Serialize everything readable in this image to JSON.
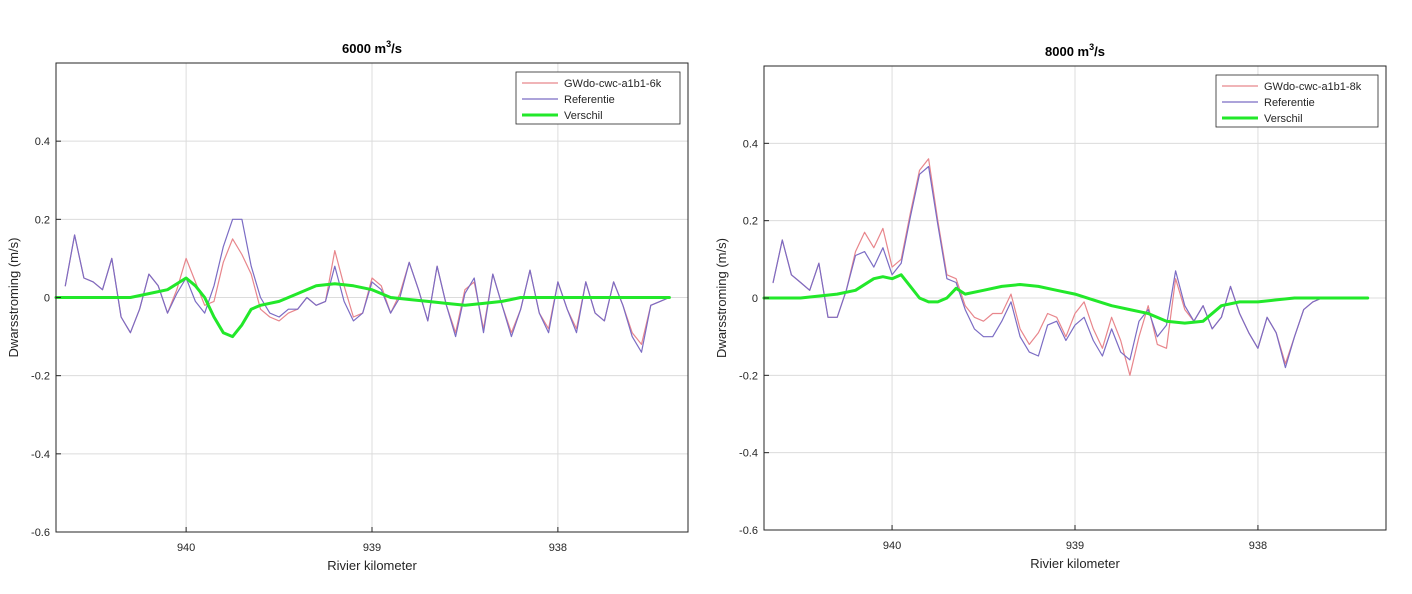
{
  "chart_data": [
    {
      "type": "line",
      "title": "6000  m",
      "title_sup": "3",
      "title_suffix": "/s",
      "xlabel": "Rivier kilometer",
      "ylabel": "Dwarsstroming (m/s)",
      "xlim": [
        940.7,
        937.3
      ],
      "ylim": [
        -0.6,
        0.6
      ],
      "xticks": [
        940,
        939,
        938
      ],
      "xtick_labels": [
        "940",
        "939",
        "938"
      ],
      "yticks": [
        -0.6,
        -0.4,
        -0.2,
        0,
        0.2,
        0.4
      ],
      "ytick_labels": [
        "-0.6",
        "-0.4",
        "-0.2",
        "0",
        "0.2",
        "0.4"
      ],
      "grid": true,
      "legend_position": "top-right",
      "series": [
        {
          "name": "GWdo-cwc-a1b1-6k",
          "color": "#e8868c",
          "x": [
            940.65,
            940.6,
            940.55,
            940.5,
            940.45,
            940.4,
            940.35,
            940.3,
            940.25,
            940.2,
            940.15,
            940.1,
            940.05,
            940.0,
            939.95,
            939.9,
            939.85,
            939.8,
            939.75,
            939.7,
            939.65,
            939.6,
            939.55,
            939.5,
            939.45,
            939.4,
            939.35,
            939.3,
            939.25,
            939.2,
            939.15,
            939.1,
            939.05,
            939.0,
            938.95,
            938.9,
            938.85,
            938.8,
            938.75,
            938.7,
            938.65,
            938.6,
            938.55,
            938.5,
            938.45,
            938.4,
            938.35,
            938.3,
            938.25,
            938.2,
            938.15,
            938.1,
            938.05,
            938.0,
            937.95,
            937.9,
            937.85,
            937.8,
            937.75,
            937.7,
            937.65,
            937.6,
            937.55,
            937.5,
            937.45,
            937.4
          ],
          "y": [
            0.03,
            0.16,
            0.05,
            0.04,
            0.02,
            0.1,
            -0.05,
            -0.09,
            -0.03,
            0.06,
            0.03,
            -0.04,
            0.02,
            0.1,
            0.04,
            -0.02,
            -0.01,
            0.09,
            0.15,
            0.11,
            0.06,
            -0.03,
            -0.05,
            -0.06,
            -0.04,
            -0.03,
            0.0,
            -0.02,
            -0.01,
            0.12,
            0.03,
            -0.05,
            -0.04,
            0.05,
            0.03,
            -0.04,
            0.01,
            0.09,
            0.02,
            -0.06,
            0.08,
            -0.02,
            -0.09,
            0.02,
            0.04,
            -0.08,
            0.06,
            -0.02,
            -0.09,
            -0.03,
            0.07,
            -0.04,
            -0.08,
            0.04,
            -0.03,
            -0.08,
            0.04,
            -0.04,
            -0.06,
            0.04,
            -0.02,
            -0.09,
            -0.12,
            -0.02,
            -0.01,
            0.0
          ]
        },
        {
          "name": "Referentie",
          "color": "#7b6cc4",
          "x": [
            940.65,
            940.6,
            940.55,
            940.5,
            940.45,
            940.4,
            940.35,
            940.3,
            940.25,
            940.2,
            940.15,
            940.1,
            940.05,
            940.0,
            939.95,
            939.9,
            939.85,
            939.8,
            939.75,
            939.7,
            939.65,
            939.6,
            939.55,
            939.5,
            939.45,
            939.4,
            939.35,
            939.3,
            939.25,
            939.2,
            939.15,
            939.1,
            939.05,
            939.0,
            938.95,
            938.9,
            938.85,
            938.8,
            938.75,
            938.7,
            938.65,
            938.6,
            938.55,
            938.5,
            938.45,
            938.4,
            938.35,
            938.3,
            938.25,
            938.2,
            938.15,
            938.1,
            938.05,
            938.0,
            937.95,
            937.9,
            937.85,
            937.8,
            937.75,
            937.7,
            937.65,
            937.6,
            937.55,
            937.5,
            937.45,
            937.4
          ],
          "y": [
            0.03,
            0.16,
            0.05,
            0.04,
            0.02,
            0.1,
            -0.05,
            -0.09,
            -0.03,
            0.06,
            0.03,
            -0.04,
            0.01,
            0.05,
            -0.01,
            -0.04,
            0.03,
            0.13,
            0.2,
            0.2,
            0.08,
            0.0,
            -0.04,
            -0.05,
            -0.03,
            -0.03,
            0.0,
            -0.02,
            -0.01,
            0.08,
            -0.01,
            -0.06,
            -0.04,
            0.04,
            0.02,
            -0.04,
            0.0,
            0.09,
            0.02,
            -0.06,
            0.08,
            -0.02,
            -0.1,
            0.01,
            0.05,
            -0.09,
            0.06,
            -0.02,
            -0.1,
            -0.03,
            0.07,
            -0.04,
            -0.09,
            0.04,
            -0.03,
            -0.09,
            0.04,
            -0.04,
            -0.06,
            0.04,
            -0.02,
            -0.1,
            -0.14,
            -0.02,
            -0.01,
            0.0
          ]
        },
        {
          "name": "Verschil",
          "color": "#22e82a",
          "x": [
            940.7,
            940.5,
            940.3,
            940.2,
            940.1,
            940.0,
            939.95,
            939.9,
            939.85,
            939.8,
            939.75,
            939.7,
            939.65,
            939.6,
            939.5,
            939.4,
            939.3,
            939.2,
            939.1,
            939.0,
            938.9,
            938.8,
            938.7,
            938.6,
            938.5,
            938.4,
            938.3,
            938.2,
            938.1,
            938.0,
            937.8,
            937.6,
            937.4
          ],
          "y": [
            0.0,
            0.0,
            0.0,
            0.01,
            0.02,
            0.05,
            0.03,
            0.0,
            -0.05,
            -0.09,
            -0.1,
            -0.07,
            -0.03,
            -0.02,
            -0.01,
            0.01,
            0.03,
            0.035,
            0.03,
            0.02,
            0.0,
            -0.005,
            -0.01,
            -0.015,
            -0.02,
            -0.015,
            -0.01,
            0.0,
            0.0,
            0.0,
            0.0,
            0.0,
            0.0
          ]
        }
      ]
    },
    {
      "type": "line",
      "title": "8000  m",
      "title_sup": "3",
      "title_suffix": "/s",
      "xlabel": "Rivier kilometer",
      "ylabel": "Dwarsstroming (m/s)",
      "xlim": [
        940.7,
        937.3
      ],
      "ylim": [
        -0.6,
        0.6
      ],
      "xticks": [
        940,
        939,
        938
      ],
      "xtick_labels": [
        "940",
        "939",
        "938"
      ],
      "yticks": [
        -0.6,
        -0.4,
        -0.2,
        0,
        0.2,
        0.4
      ],
      "ytick_labels": [
        "-0.6",
        "-0.4",
        "-0.2",
        "0",
        "0.2",
        "0.4"
      ],
      "grid": true,
      "legend_position": "top-right",
      "series": [
        {
          "name": "GWdo-cwc-a1b1-8k",
          "color": "#e8868c",
          "x": [
            940.65,
            940.6,
            940.55,
            940.5,
            940.45,
            940.4,
            940.35,
            940.3,
            940.25,
            940.2,
            940.15,
            940.1,
            940.05,
            940.0,
            939.95,
            939.9,
            939.85,
            939.8,
            939.75,
            939.7,
            939.65,
            939.6,
            939.55,
            939.5,
            939.45,
            939.4,
            939.35,
            939.3,
            939.25,
            939.2,
            939.15,
            939.1,
            939.05,
            939.0,
            938.95,
            938.9,
            938.85,
            938.8,
            938.75,
            938.7,
            938.65,
            938.6,
            938.55,
            938.5,
            938.45,
            938.4,
            938.35,
            938.3,
            938.25,
            938.2,
            938.15,
            938.1,
            938.05,
            938.0,
            937.95,
            937.9,
            937.85,
            937.8,
            937.75,
            937.7,
            937.65,
            937.6,
            937.55,
            937.5,
            937.45,
            937.4
          ],
          "y": [
            0.04,
            0.15,
            0.06,
            0.04,
            0.02,
            0.09,
            -0.05,
            -0.05,
            0.02,
            0.12,
            0.17,
            0.13,
            0.18,
            0.08,
            0.1,
            0.22,
            0.33,
            0.36,
            0.2,
            0.06,
            0.05,
            -0.02,
            -0.05,
            -0.06,
            -0.04,
            -0.04,
            0.01,
            -0.08,
            -0.12,
            -0.09,
            -0.04,
            -0.05,
            -0.1,
            -0.04,
            -0.01,
            -0.08,
            -0.13,
            -0.05,
            -0.11,
            -0.2,
            -0.1,
            -0.02,
            -0.12,
            -0.13,
            0.05,
            -0.03,
            -0.06,
            -0.02,
            -0.08,
            -0.05,
            0.03,
            -0.04,
            -0.09,
            -0.13,
            -0.05,
            -0.09,
            -0.17,
            -0.1,
            -0.03,
            -0.01,
            0.0,
            0.0,
            0.0,
            0.0,
            0.0,
            0.0
          ]
        },
        {
          "name": "Referentie",
          "color": "#7b6cc4",
          "x": [
            940.65,
            940.6,
            940.55,
            940.5,
            940.45,
            940.4,
            940.35,
            940.3,
            940.25,
            940.2,
            940.15,
            940.1,
            940.05,
            940.0,
            939.95,
            939.9,
            939.85,
            939.8,
            939.75,
            939.7,
            939.65,
            939.6,
            939.55,
            939.5,
            939.45,
            939.4,
            939.35,
            939.3,
            939.25,
            939.2,
            939.15,
            939.1,
            939.05,
            939.0,
            938.95,
            938.9,
            938.85,
            938.8,
            938.75,
            938.7,
            938.65,
            938.6,
            938.55,
            938.5,
            938.45,
            938.4,
            938.35,
            938.3,
            938.25,
            938.2,
            938.15,
            938.1,
            938.05,
            938.0,
            937.95,
            937.9,
            937.85,
            937.8,
            937.75,
            937.7,
            937.65,
            937.6,
            937.55,
            937.5,
            937.45,
            937.4
          ],
          "y": [
            0.04,
            0.15,
            0.06,
            0.04,
            0.02,
            0.09,
            -0.05,
            -0.05,
            0.02,
            0.11,
            0.12,
            0.08,
            0.13,
            0.06,
            0.09,
            0.21,
            0.32,
            0.34,
            0.19,
            0.05,
            0.04,
            -0.03,
            -0.08,
            -0.1,
            -0.1,
            -0.06,
            -0.01,
            -0.1,
            -0.14,
            -0.15,
            -0.07,
            -0.06,
            -0.11,
            -0.07,
            -0.05,
            -0.11,
            -0.15,
            -0.08,
            -0.14,
            -0.16,
            -0.06,
            -0.03,
            -0.1,
            -0.07,
            0.07,
            -0.02,
            -0.06,
            -0.02,
            -0.08,
            -0.05,
            0.03,
            -0.04,
            -0.09,
            -0.13,
            -0.05,
            -0.09,
            -0.18,
            -0.1,
            -0.03,
            -0.01,
            0.0,
            0.0,
            0.0,
            0.0,
            0.0,
            0.0
          ]
        },
        {
          "name": "Verschil",
          "color": "#22e82a",
          "x": [
            940.7,
            940.5,
            940.3,
            940.2,
            940.1,
            940.05,
            940.0,
            939.95,
            939.9,
            939.85,
            939.8,
            939.75,
            939.7,
            939.65,
            939.6,
            939.5,
            939.4,
            939.3,
            939.2,
            939.1,
            939.0,
            938.9,
            938.8,
            938.7,
            938.6,
            938.5,
            938.4,
            938.3,
            938.2,
            938.1,
            938.0,
            937.9,
            937.8,
            937.6,
            937.4
          ],
          "y": [
            0.0,
            0.0,
            0.01,
            0.02,
            0.05,
            0.055,
            0.05,
            0.06,
            0.03,
            0.0,
            -0.01,
            -0.01,
            0.0,
            0.025,
            0.01,
            0.02,
            0.03,
            0.035,
            0.03,
            0.02,
            0.01,
            -0.005,
            -0.02,
            -0.03,
            -0.04,
            -0.06,
            -0.065,
            -0.06,
            -0.02,
            -0.01,
            -0.01,
            -0.005,
            0.0,
            0.0,
            0.0
          ]
        }
      ]
    }
  ]
}
